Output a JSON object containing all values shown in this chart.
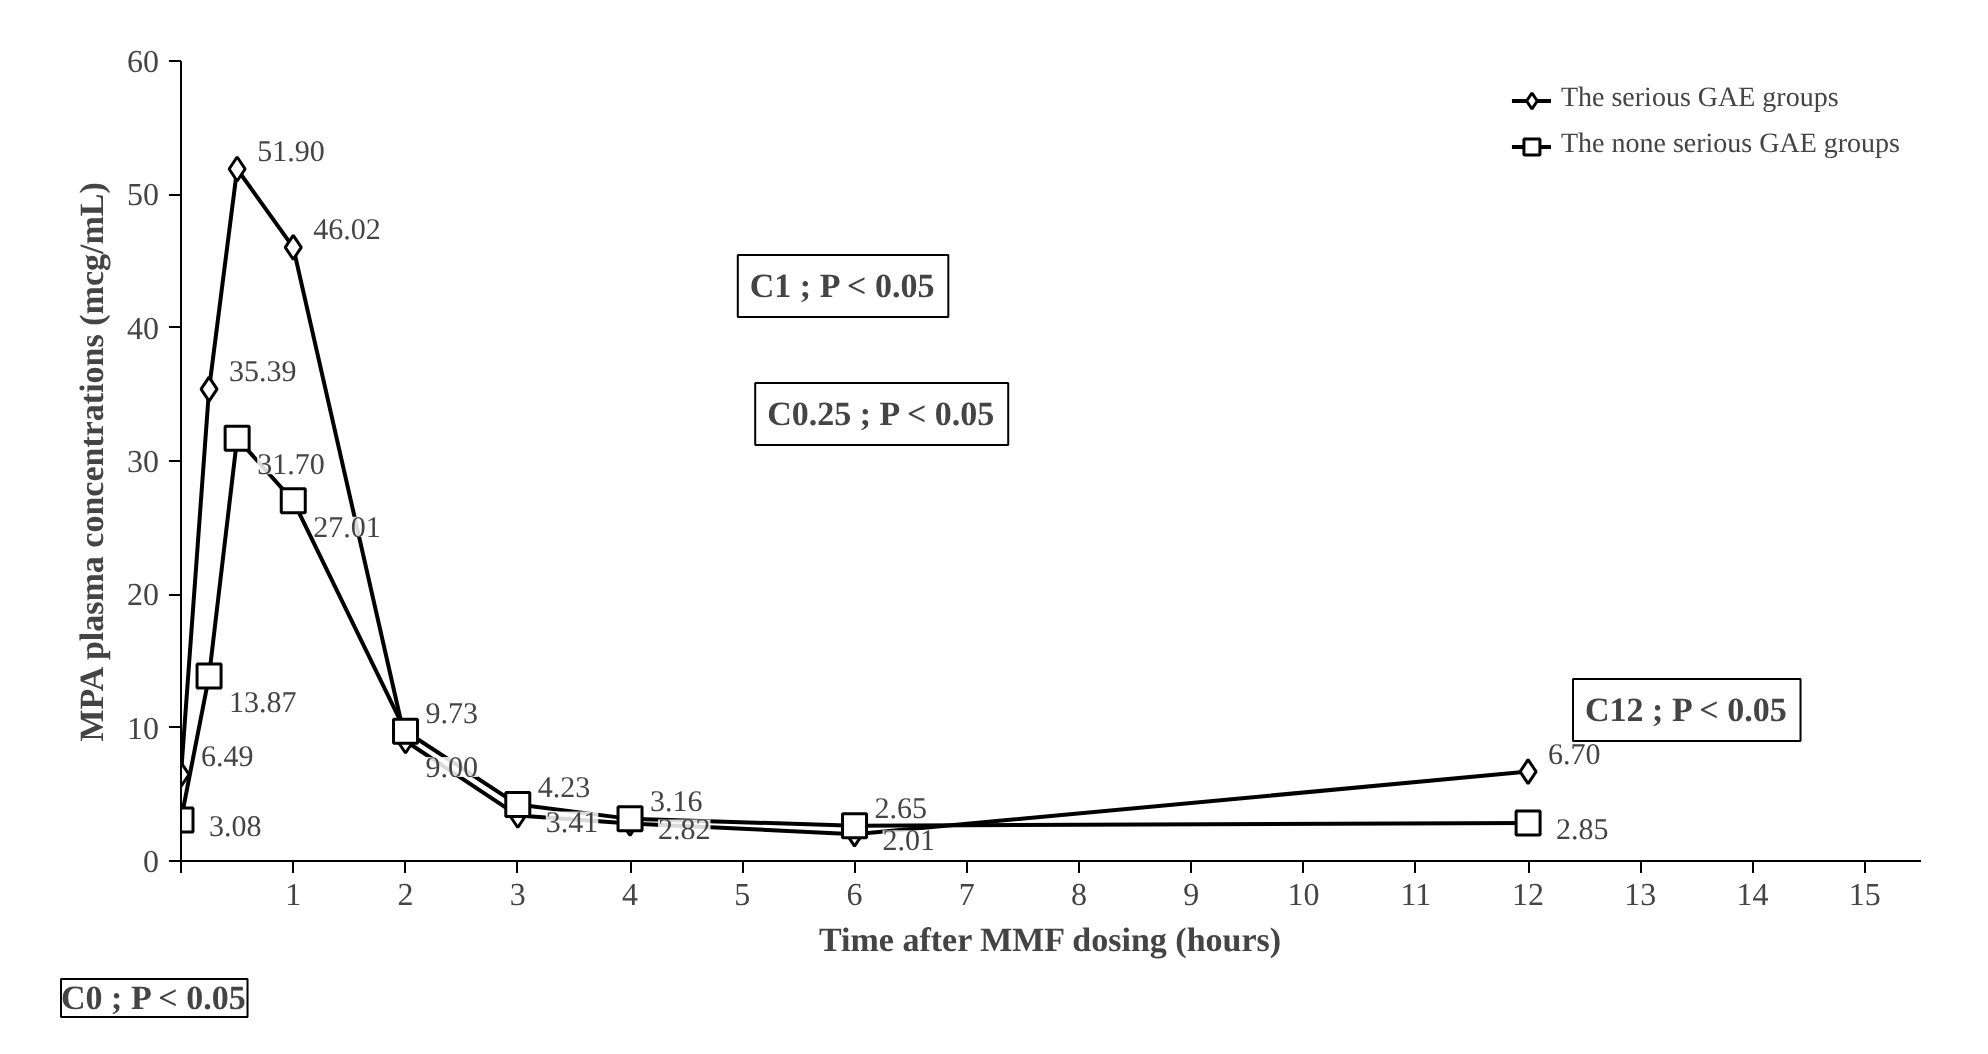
{
  "chart_data": {
    "type": "line",
    "xlabel": "Time after MMF dosing (hours)",
    "ylabel": "MPA plasma concentrations (mcg/mL)",
    "x": [
      0,
      0.25,
      0.5,
      1,
      2,
      3,
      4,
      6,
      12
    ],
    "series": [
      {
        "name": "The serious GAE groups",
        "color": "#000000",
        "marker": "diamond",
        "values": [
          6.49,
          35.39,
          51.9,
          46.02,
          9.0,
          3.41,
          2.82,
          2.01,
          6.7
        ],
        "value_labels": [
          "6.49",
          "35.39",
          "51.90",
          "46.02",
          "9.00",
          "3.41",
          "2.82",
          "2.01",
          "6.70"
        ]
      },
      {
        "name": "The none serious GAE groups",
        "color": "#000000",
        "marker": "square",
        "values": [
          3.08,
          13.87,
          31.7,
          27.01,
          9.73,
          4.23,
          3.16,
          2.65,
          2.85
        ],
        "value_labels": [
          "3.08",
          "13.87",
          "31.70",
          "27.01",
          "9.73",
          "4.23",
          "3.16",
          "2.65",
          "2.85"
        ]
      }
    ],
    "xlim": [
      0,
      15.5
    ],
    "ylim": [
      0,
      60
    ],
    "xticks": [
      {
        "value": 0,
        "label": null
      },
      1,
      2,
      3,
      4,
      5,
      6,
      7,
      8,
      9,
      10,
      11,
      12,
      13,
      14,
      15
    ],
    "yticks": [
      0,
      10,
      20,
      30,
      40,
      50,
      60
    ],
    "grid": false,
    "legend": "top right",
    "line_style": "solid",
    "annotations": [
      "C1 ; P < 0.05",
      "C0.25 ; P < 0.05",
      "C12 ; P < 0.05",
      "C0 ; P < 0.05"
    ]
  }
}
